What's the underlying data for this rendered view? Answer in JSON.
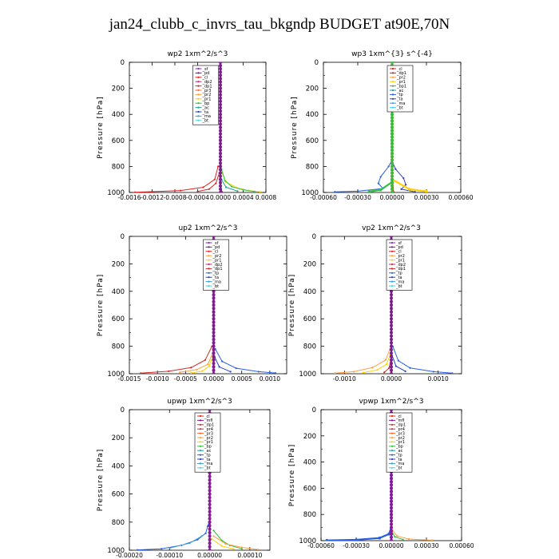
{
  "figure_title": "jan24_clubb_c_invrs_tau_bkgndp  BUDGET at90E,70N",
  "colors": {
    "_sf": "#8a2ad0",
    "_pd": "#7a1e8a",
    "_cl": "#e02020",
    "_dp2": "#c0306a",
    "_dp1": "#d22a2a",
    "_pr3": "#ff6a30",
    "_pr2": "#ffa040",
    "_pr1": "#ffd000",
    "_bp": "#30c040",
    "_bp1": "#30c040",
    "_ac": "#20a090",
    "_tp": "#2a60e0",
    "_ta": "#2a40c0",
    "_ma": "#3aa0d0",
    "_bt": "#40d8e8",
    "_mfl": "#8a1a9a",
    "_pr4": "#c03060"
  },
  "chart_data": [
    {
      "type": "line",
      "title": "wp2   1xm^2/s^3",
      "ylabel": "Pressure [hPa]",
      "xlim": [
        -0.0016,
        0.0008
      ],
      "ylim": [
        1000,
        0
      ],
      "x_ticks": [
        -0.0016,
        -0.0012,
        -0.0008,
        -0.0004,
        0.0,
        0.0004,
        0.0008
      ],
      "x_tick_labels": [
        "-0.0016",
        "-0.0012",
        "-0.0008",
        "-0.0004",
        "0.0000",
        "0.0004",
        "0.0008"
      ],
      "y_ticks": [
        0,
        200,
        400,
        600,
        800,
        1000
      ],
      "legend": [
        "_sf",
        "_pd",
        "_cl",
        "_dp2",
        "_dp1",
        "_pr3",
        "_pr2",
        "_pr1",
        "_bp",
        "_ac",
        "_ta",
        "_ma",
        "_bt"
      ],
      "series": [
        {
          "name": "_cl",
          "points": [
            [
              -4e-05,
              800
            ],
            [
              -0.0001,
              900
            ],
            [
              -0.0003,
              960
            ],
            [
              -0.0007,
              985
            ],
            [
              -0.0012,
              994
            ],
            [
              -0.0015,
              998
            ]
          ]
        },
        {
          "name": "_dp1",
          "points": [
            [
              -2e-05,
              850
            ],
            [
              -8e-05,
              930
            ],
            [
              -0.0002,
              975
            ],
            [
              -0.0004,
              992
            ]
          ]
        },
        {
          "name": "_pr1",
          "points": [
            [
              3e-05,
              850
            ],
            [
              0.0001,
              920
            ],
            [
              0.0003,
              965
            ],
            [
              0.0005,
              985
            ],
            [
              0.0007,
              995
            ]
          ]
        },
        {
          "name": "_bp",
          "points": [
            [
              2e-05,
              820
            ],
            [
              8e-05,
              910
            ],
            [
              0.0002,
              955
            ],
            [
              0.0004,
              980
            ],
            [
              0.0006,
              993
            ]
          ]
        },
        {
          "name": "_ac",
          "points": [
            [
              2e-05,
              900
            ],
            [
              0.0001,
              960
            ],
            [
              0.0003,
              990
            ]
          ]
        },
        {
          "name": "_pd",
          "points": [
            [
              0,
              0
            ],
            [
              0,
              200
            ],
            [
              0,
              400
            ],
            [
              0,
              600
            ],
            [
              0,
              800
            ],
            [
              0,
              950
            ],
            [
              2e-05,
              1000
            ]
          ]
        }
      ]
    },
    {
      "type": "line",
      "title": "wp3   1xm^{3} s^{-4}",
      "ylabel": "Pressure [hPa]",
      "xlim": [
        -0.0006,
        0.0006
      ],
      "ylim": [
        1000,
        0
      ],
      "x_ticks": [
        -0.0006,
        -0.0003,
        0.0,
        0.0003,
        0.0006
      ],
      "x_tick_labels": [
        "-0.00060",
        "-0.00030",
        "0.00000",
        "0.00030",
        "0.00060"
      ],
      "y_ticks": [
        0,
        200,
        400,
        600,
        800,
        1000
      ],
      "legend": [
        "_cl",
        "_dp1",
        "_pr2",
        "_pr1",
        "_bp1",
        "_ac",
        "_tp",
        "_ta",
        "_ma",
        "_bt"
      ],
      "series": [
        {
          "name": "_tp",
          "points": [
            [
              0,
              750
            ],
            [
              -3e-05,
              800
            ],
            [
              -0.0001,
              880
            ],
            [
              -0.00012,
              930
            ],
            [
              -8e-05,
              970
            ],
            [
              -0.0003,
              990
            ],
            [
              -0.0005,
              995
            ]
          ]
        },
        {
          "name": "_ta",
          "points": [
            [
              0,
              760
            ],
            [
              3e-05,
              820
            ],
            [
              0.0001,
              890
            ],
            [
              0.00012,
              940
            ],
            [
              8e-05,
              975
            ],
            [
              0.0002,
              995
            ]
          ]
        },
        {
          "name": "_cl",
          "points": [
            [
              0,
              0
            ],
            [
              0,
              300
            ],
            [
              0,
              600
            ],
            [
              0,
              900
            ],
            [
              1e-05,
              1000
            ]
          ]
        },
        {
          "name": "_pr1",
          "points": [
            [
              0,
              900
            ],
            [
              0.00015,
              975
            ],
            [
              0.0003,
              992
            ]
          ]
        },
        {
          "name": "_bp1",
          "points": [
            [
              0,
              920
            ],
            [
              -0.0001,
              980
            ],
            [
              -0.0002,
              994
            ]
          ]
        }
      ]
    },
    {
      "type": "line",
      "title": "up2   1xm^2/s^3",
      "ylabel": "Pressure [hPa]",
      "xlim": [
        -0.0015,
        0.0013
      ],
      "ylim": [
        1000,
        0
      ],
      "x_ticks": [
        -0.0015,
        -0.001,
        -0.0005,
        0.0,
        0.0005,
        0.001
      ],
      "x_tick_labels": [
        "-0.0015",
        "-0.0010",
        "-0.0005",
        "0.0000",
        "0.0005",
        "0.0010"
      ],
      "y_ticks": [
        0,
        200,
        400,
        600,
        800,
        1000
      ],
      "legend": [
        "_sf",
        "_pd",
        "_cl",
        "_pr2",
        "_pr1",
        "_dp2",
        "_dp1",
        "_tp",
        "_ta",
        "_ma",
        "_bt"
      ],
      "series": [
        {
          "name": "_dp1",
          "points": [
            [
              -3e-05,
              800
            ],
            [
              -0.00015,
              900
            ],
            [
              -0.0004,
              955
            ],
            [
              -0.0008,
              982
            ],
            [
              -0.0013,
              996
            ]
          ]
        },
        {
          "name": "_pr2",
          "points": [
            [
              -2e-05,
              850
            ],
            [
              -0.0001,
              930
            ],
            [
              -0.0003,
              970
            ],
            [
              -0.0006,
              990
            ]
          ]
        },
        {
          "name": "_pr1",
          "points": [
            [
              -2e-05,
              880
            ],
            [
              -8e-05,
              945
            ],
            [
              -0.0002,
              980
            ],
            [
              -0.0004,
              995
            ]
          ]
        },
        {
          "name": "_tp",
          "points": [
            [
              3e-05,
              820
            ],
            [
              0.00015,
              910
            ],
            [
              0.0004,
              960
            ],
            [
              0.0008,
              985
            ],
            [
              0.0011,
              995
            ]
          ]
        },
        {
          "name": "_ta",
          "points": [
            [
              2e-05,
              880
            ],
            [
              0.0001,
              950
            ],
            [
              0.0003,
              985
            ]
          ]
        },
        {
          "name": "_pd",
          "points": [
            [
              0,
              0
            ],
            [
              0,
              200
            ],
            [
              0,
              400
            ],
            [
              0,
              600
            ],
            [
              0,
              800
            ],
            [
              0,
              950
            ],
            [
              0,
              1000
            ]
          ]
        }
      ]
    },
    {
      "type": "line",
      "title": "vp2   1xm^2/s^3",
      "ylabel": "Pressure [hPa]",
      "xlim": [
        -0.0015,
        0.0015
      ],
      "ylim": [
        1000,
        0
      ],
      "x_ticks": [
        -0.001,
        0.0,
        0.001
      ],
      "x_tick_labels": [
        "-0.0010",
        "0.0000",
        "0.0010"
      ],
      "y_ticks": [
        0,
        200,
        400,
        600,
        800,
        1000
      ],
      "legend": [
        "_sf",
        "_pd",
        "_cl",
        "_pr2",
        "_pr1",
        "_dp2",
        "_dp1",
        "_tp",
        "_ta",
        "_ma",
        "_bt"
      ],
      "series": [
        {
          "name": "_pr2",
          "points": [
            [
              -3e-05,
              820
            ],
            [
              -0.00012,
              900
            ],
            [
              -0.0004,
              955
            ],
            [
              -0.0008,
              985
            ],
            [
              -0.0012,
              996
            ]
          ]
        },
        {
          "name": "_pr1",
          "points": [
            [
              -2e-05,
              860
            ],
            [
              -0.0001,
              930
            ],
            [
              -0.0003,
              972
            ],
            [
              -0.0006,
              992
            ]
          ]
        },
        {
          "name": "_tp",
          "points": [
            [
              3e-05,
              800
            ],
            [
              0.00015,
              905
            ],
            [
              0.0004,
              958
            ],
            [
              0.0009,
              985
            ],
            [
              0.0013,
              996
            ]
          ]
        },
        {
          "name": "_ta",
          "points": [
            [
              2e-05,
              870
            ],
            [
              0.0001,
              945
            ],
            [
              0.0003,
              982
            ]
          ]
        },
        {
          "name": "_dp1",
          "points": [
            [
              -1e-05,
              900
            ],
            [
              -5e-05,
              960
            ],
            [
              -0.00015,
              990
            ]
          ]
        },
        {
          "name": "_pd",
          "points": [
            [
              0,
              0
            ],
            [
              0,
              200
            ],
            [
              0,
              400
            ],
            [
              0,
              600
            ],
            [
              0,
              800
            ],
            [
              0,
              950
            ],
            [
              0,
              1000
            ]
          ]
        }
      ]
    },
    {
      "type": "line",
      "title": "upwp   1xm^2/s^3",
      "ylabel": "Pressure [hPa]",
      "xlim": [
        -0.0002,
        0.00015
      ],
      "ylim": [
        1000,
        0
      ],
      "x_ticks": [
        -0.0002,
        -0.0001,
        0.0,
        0.0001
      ],
      "x_tick_labels": [
        "-0.00020",
        "-0.00010",
        "0.00000",
        "0.00010"
      ],
      "y_ticks": [
        0,
        200,
        400,
        600,
        800,
        1000
      ],
      "legend": [
        "_cl",
        "_mfl",
        "_dp1",
        "_pr4",
        "_pr3",
        "_pr2",
        "_pr1",
        "_bp",
        "_ac",
        "_tp",
        "_ta",
        "_ma",
        "_bt"
      ],
      "series": [
        {
          "name": "_tp",
          "points": [
            [
              0,
              780
            ],
            [
              -5e-06,
              830
            ],
            [
              -1e-05,
              880
            ],
            [
              -3e-05,
              925
            ],
            [
              -7e-05,
              965
            ],
            [
              -0.00012,
              990
            ],
            [
              -0.00018,
              998
            ]
          ]
        },
        {
          "name": "_ma",
          "points": [
            [
              -2e-05,
              900
            ],
            [
              -5e-05,
              950
            ],
            [
              -0.0001,
              985
            ]
          ]
        },
        {
          "name": "_bp",
          "points": [
            [
              1e-05,
              860
            ],
            [
              3e-05,
              930
            ],
            [
              5e-05,
              965
            ],
            [
              8e-05,
              990
            ]
          ]
        },
        {
          "name": "_pr2",
          "points": [
            [
              1e-05,
              900
            ],
            [
              4e-05,
              955
            ],
            [
              8e-05,
              980
            ],
            [
              0.00012,
              995
            ]
          ]
        },
        {
          "name": "_pr1",
          "points": [
            [
              5e-06,
              920
            ],
            [
              3e-05,
              970
            ],
            [
              6e-05,
              992
            ]
          ]
        },
        {
          "name": "_mfl",
          "points": [
            [
              0,
              0
            ],
            [
              0,
              200
            ],
            [
              0,
              400
            ],
            [
              0,
              600
            ],
            [
              0,
              800
            ],
            [
              0,
              950
            ],
            [
              0,
              1000
            ]
          ]
        }
      ]
    },
    {
      "type": "line",
      "title": "vpwp   1xm^2/s^3",
      "ylabel": "Pressure [hPa]",
      "xlim": [
        -0.0006,
        0.0006
      ],
      "ylim": [
        1000,
        0
      ],
      "x_ticks": [
        -0.0006,
        -0.0003,
        0.0,
        0.0003,
        0.0006
      ],
      "x_tick_labels": [
        "-0.00060",
        "-0.00030",
        "0.00000",
        "0.00030",
        "0.00060"
      ],
      "y_ticks": [
        0,
        200,
        400,
        600,
        800,
        1000
      ],
      "legend": [
        "_cl",
        "_mfl",
        "_dp1",
        "_pr4",
        "_pr3",
        "_pr2",
        "_pr1",
        "_bp",
        "_ac",
        "_tp",
        "_ta",
        "_ma",
        "_bt"
      ],
      "series": [
        {
          "name": "_tp",
          "points": [
            [
              0,
              900
            ],
            [
              -2e-05,
              950
            ],
            [
              -0.0001,
              980
            ],
            [
              -0.0003,
              994
            ],
            [
              -0.00055,
              998
            ]
          ]
        },
        {
          "name": "_pr2",
          "points": [
            [
              1e-05,
              920
            ],
            [
              5e-05,
              965
            ],
            [
              0.00015,
              988
            ],
            [
              0.00035,
              997
            ]
          ]
        },
        {
          "name": "_bp",
          "points": [
            [
              5e-06,
              930
            ],
            [
              3e-05,
              970
            ],
            [
              0.0001,
              992
            ]
          ]
        },
        {
          "name": "_mfl",
          "points": [
            [
              0,
              0
            ],
            [
              0,
              200
            ],
            [
              0,
              400
            ],
            [
              0,
              600
            ],
            [
              0,
              800
            ],
            [
              0,
              950
            ],
            [
              0,
              1000
            ]
          ]
        }
      ]
    }
  ]
}
